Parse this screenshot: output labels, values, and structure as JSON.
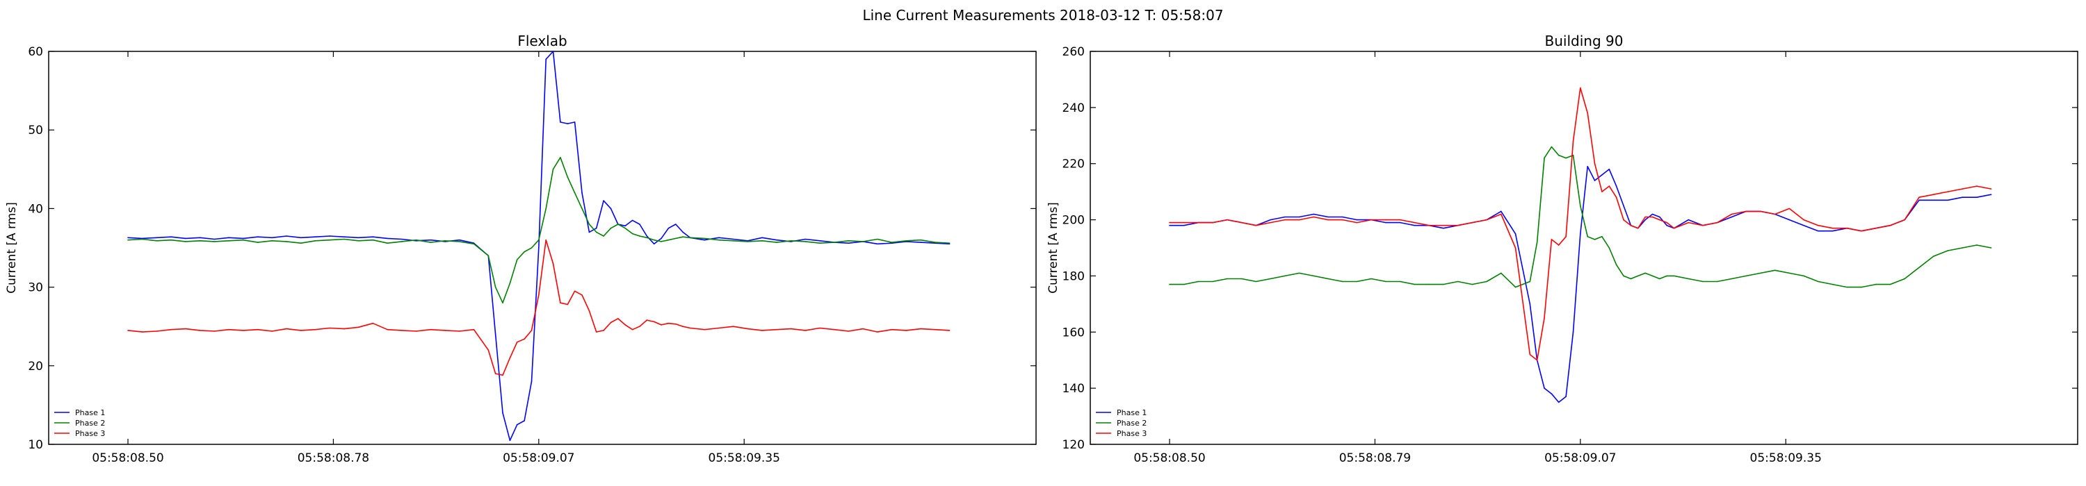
{
  "figure": {
    "suptitle": "Line Current Measurements 2018-03-12 T: 05:58:07"
  },
  "chart_data": [
    {
      "type": "line",
      "title": "Flexlab",
      "xlabel": "",
      "ylabel": "Current [A rms]",
      "ylim": [
        10,
        60
      ],
      "xlim": [
        -0.11,
        1.26
      ],
      "yticks": [
        10,
        20,
        30,
        40,
        50,
        60
      ],
      "xticks": [
        {
          "value": 0.0,
          "label": "05:58:08.50"
        },
        {
          "value": 0.285,
          "label": "05:58:08.78"
        },
        {
          "value": 0.57,
          "label": "05:58:09.07"
        },
        {
          "value": 0.855,
          "label": "05:58:09.35"
        }
      ],
      "legend_loc": "lower-left",
      "grid": false,
      "x_unit": "seconds after 05:58:08.50",
      "series": [
        {
          "name": "Phase 1",
          "color": "#0000ff",
          "x": [
            0,
            0.02,
            0.04,
            0.06,
            0.08,
            0.1,
            0.12,
            0.14,
            0.16,
            0.18,
            0.2,
            0.22,
            0.24,
            0.26,
            0.28,
            0.3,
            0.32,
            0.34,
            0.36,
            0.38,
            0.4,
            0.42,
            0.44,
            0.46,
            0.48,
            0.5,
            0.51,
            0.52,
            0.53,
            0.54,
            0.55,
            0.56,
            0.57,
            0.58,
            0.59,
            0.6,
            0.61,
            0.62,
            0.63,
            0.64,
            0.65,
            0.66,
            0.67,
            0.68,
            0.69,
            0.7,
            0.71,
            0.72,
            0.73,
            0.74,
            0.75,
            0.76,
            0.77,
            0.78,
            0.8,
            0.82,
            0.84,
            0.86,
            0.88,
            0.9,
            0.92,
            0.94,
            0.96,
            0.98,
            1.0,
            1.02,
            1.04,
            1.06,
            1.08,
            1.1,
            1.12,
            1.14
          ],
          "y": [
            36.3,
            36.2,
            36.3,
            36.4,
            36.2,
            36.3,
            36.1,
            36.3,
            36.2,
            36.4,
            36.3,
            36.5,
            36.3,
            36.4,
            36.5,
            36.4,
            36.3,
            36.4,
            36.2,
            36.1,
            35.9,
            36.0,
            35.8,
            36.0,
            35.6,
            34.0,
            24.0,
            14.0,
            10.5,
            12.5,
            13.0,
            18.0,
            35.0,
            59.0,
            60.0,
            51.0,
            50.8,
            51.0,
            42.0,
            37.0,
            37.5,
            41.0,
            40.0,
            38.0,
            37.8,
            38.5,
            38.0,
            36.5,
            35.5,
            36.2,
            37.5,
            38.0,
            37.0,
            36.3,
            36.0,
            36.3,
            36.1,
            35.9,
            36.3,
            36.0,
            35.8,
            36.1,
            35.9,
            35.7,
            35.6,
            35.8,
            35.5,
            35.6,
            35.8,
            35.7,
            35.6,
            35.5
          ]
        },
        {
          "name": "Phase 2",
          "color": "#008000",
          "x": [
            0,
            0.02,
            0.04,
            0.06,
            0.08,
            0.1,
            0.12,
            0.14,
            0.16,
            0.18,
            0.2,
            0.22,
            0.24,
            0.26,
            0.28,
            0.3,
            0.32,
            0.34,
            0.36,
            0.38,
            0.4,
            0.42,
            0.44,
            0.46,
            0.48,
            0.5,
            0.51,
            0.52,
            0.53,
            0.54,
            0.55,
            0.56,
            0.57,
            0.58,
            0.59,
            0.6,
            0.61,
            0.62,
            0.63,
            0.64,
            0.65,
            0.66,
            0.67,
            0.68,
            0.69,
            0.7,
            0.71,
            0.72,
            0.73,
            0.74,
            0.75,
            0.76,
            0.77,
            0.78,
            0.8,
            0.82,
            0.84,
            0.86,
            0.88,
            0.9,
            0.92,
            0.94,
            0.96,
            0.98,
            1.0,
            1.02,
            1.04,
            1.06,
            1.08,
            1.1,
            1.12,
            1.14
          ],
          "y": [
            36.0,
            36.1,
            35.9,
            36.0,
            35.8,
            35.9,
            35.8,
            35.9,
            36.0,
            35.7,
            35.9,
            35.8,
            35.6,
            35.9,
            36.0,
            36.1,
            35.9,
            36.0,
            35.6,
            35.8,
            36.0,
            35.7,
            35.9,
            35.8,
            35.5,
            34.0,
            30.0,
            28.0,
            30.5,
            33.5,
            34.5,
            35.0,
            36.0,
            40.0,
            45.0,
            46.5,
            44.0,
            42.0,
            40.0,
            38.0,
            37.0,
            36.5,
            37.5,
            38.0,
            37.5,
            36.8,
            36.5,
            36.3,
            36.0,
            35.8,
            36.0,
            36.2,
            36.4,
            36.3,
            36.2,
            36.0,
            35.9,
            35.8,
            35.9,
            35.7,
            35.9,
            35.8,
            35.6,
            35.7,
            35.9,
            35.8,
            36.1,
            35.7,
            35.9,
            36.0,
            35.7,
            35.6
          ]
        },
        {
          "name": "Phase 3",
          "color": "#ff0000",
          "x": [
            0,
            0.02,
            0.04,
            0.06,
            0.08,
            0.1,
            0.12,
            0.14,
            0.16,
            0.18,
            0.2,
            0.22,
            0.24,
            0.26,
            0.28,
            0.3,
            0.32,
            0.34,
            0.36,
            0.38,
            0.4,
            0.42,
            0.44,
            0.46,
            0.48,
            0.5,
            0.51,
            0.52,
            0.53,
            0.54,
            0.55,
            0.56,
            0.57,
            0.58,
            0.59,
            0.6,
            0.61,
            0.62,
            0.63,
            0.64,
            0.65,
            0.66,
            0.67,
            0.68,
            0.69,
            0.7,
            0.71,
            0.72,
            0.73,
            0.74,
            0.75,
            0.76,
            0.77,
            0.78,
            0.8,
            0.82,
            0.84,
            0.86,
            0.88,
            0.9,
            0.92,
            0.94,
            0.96,
            0.98,
            1.0,
            1.02,
            1.04,
            1.06,
            1.08,
            1.1,
            1.12,
            1.14
          ],
          "y": [
            24.5,
            24.3,
            24.4,
            24.6,
            24.7,
            24.5,
            24.4,
            24.6,
            24.5,
            24.6,
            24.4,
            24.7,
            24.5,
            24.6,
            24.8,
            24.7,
            24.9,
            25.4,
            24.6,
            24.5,
            24.4,
            24.6,
            24.5,
            24.4,
            24.6,
            22.0,
            19.0,
            18.8,
            21.0,
            23.0,
            23.4,
            24.5,
            29.0,
            36.0,
            33.0,
            28.0,
            27.8,
            29.5,
            29.0,
            27.0,
            24.3,
            24.5,
            25.5,
            26.0,
            25.2,
            24.6,
            25.0,
            25.8,
            25.6,
            25.2,
            25.4,
            25.3,
            25.0,
            24.8,
            24.6,
            24.8,
            25.0,
            24.7,
            24.5,
            24.6,
            24.7,
            24.5,
            24.8,
            24.6,
            24.4,
            24.7,
            24.3,
            24.6,
            24.5,
            24.7,
            24.6,
            24.5
          ]
        }
      ]
    },
    {
      "type": "line",
      "title": "Building 90",
      "xlabel": "",
      "ylabel": "Current [A rms]",
      "ylim": [
        120,
        260
      ],
      "xlim": [
        -0.11,
        1.26
      ],
      "yticks": [
        120,
        140,
        160,
        180,
        200,
        220,
        240,
        260
      ],
      "xticks": [
        {
          "value": 0.0,
          "label": "05:58:08.50"
        },
        {
          "value": 0.285,
          "label": "05:58:08.79"
        },
        {
          "value": 0.57,
          "label": "05:58:09.07"
        },
        {
          "value": 0.855,
          "label": "05:58:09.35"
        }
      ],
      "legend_loc": "lower-left",
      "grid": false,
      "x_unit": "seconds after 05:58:08.50",
      "series": [
        {
          "name": "Phase 1",
          "color": "#0000ff",
          "x": [
            0,
            0.02,
            0.04,
            0.06,
            0.08,
            0.1,
            0.12,
            0.14,
            0.16,
            0.18,
            0.2,
            0.22,
            0.24,
            0.26,
            0.28,
            0.3,
            0.32,
            0.34,
            0.36,
            0.38,
            0.4,
            0.42,
            0.44,
            0.46,
            0.48,
            0.5,
            0.51,
            0.52,
            0.53,
            0.54,
            0.55,
            0.56,
            0.57,
            0.58,
            0.59,
            0.6,
            0.61,
            0.62,
            0.63,
            0.64,
            0.65,
            0.66,
            0.67,
            0.68,
            0.69,
            0.7,
            0.72,
            0.74,
            0.76,
            0.78,
            0.8,
            0.82,
            0.84,
            0.86,
            0.88,
            0.9,
            0.92,
            0.94,
            0.96,
            0.98,
            1.0,
            1.02,
            1.04,
            1.06,
            1.08,
            1.1,
            1.12,
            1.14
          ],
          "y": [
            198,
            198,
            199,
            199,
            200,
            199,
            198,
            200,
            201,
            201,
            202,
            201,
            201,
            200,
            200,
            199,
            199,
            198,
            198,
            197,
            198,
            199,
            200,
            203,
            195,
            170,
            150,
            140,
            138,
            135,
            137,
            160,
            195,
            219,
            214,
            216,
            218,
            212,
            205,
            198,
            197,
            200,
            202,
            201,
            198,
            197,
            200,
            198,
            199,
            201,
            203,
            203,
            202,
            200,
            198,
            196,
            196,
            197,
            196,
            197,
            198,
            200,
            207,
            207,
            207,
            208,
            208,
            209
          ]
        },
        {
          "name": "Phase 2",
          "color": "#008000",
          "x": [
            0,
            0.02,
            0.04,
            0.06,
            0.08,
            0.1,
            0.12,
            0.14,
            0.16,
            0.18,
            0.2,
            0.22,
            0.24,
            0.26,
            0.28,
            0.3,
            0.32,
            0.34,
            0.36,
            0.38,
            0.4,
            0.42,
            0.44,
            0.46,
            0.48,
            0.5,
            0.51,
            0.52,
            0.53,
            0.54,
            0.55,
            0.56,
            0.57,
            0.58,
            0.59,
            0.6,
            0.61,
            0.62,
            0.63,
            0.64,
            0.65,
            0.66,
            0.67,
            0.68,
            0.69,
            0.7,
            0.72,
            0.74,
            0.76,
            0.78,
            0.8,
            0.82,
            0.84,
            0.86,
            0.88,
            0.9,
            0.92,
            0.94,
            0.96,
            0.98,
            1.0,
            1.02,
            1.04,
            1.06,
            1.08,
            1.1,
            1.12,
            1.14
          ],
          "y": [
            177,
            177,
            178,
            178,
            179,
            179,
            178,
            179,
            180,
            181,
            180,
            179,
            178,
            178,
            179,
            178,
            178,
            177,
            177,
            177,
            178,
            177,
            178,
            181,
            176,
            178,
            192,
            222,
            226,
            223,
            222,
            223,
            205,
            194,
            193,
            194,
            190,
            184,
            180,
            179,
            180,
            181,
            180,
            179,
            180,
            180,
            179,
            178,
            178,
            179,
            180,
            181,
            182,
            181,
            180,
            178,
            177,
            176,
            176,
            177,
            177,
            179,
            183,
            187,
            189,
            190,
            191,
            190
          ]
        },
        {
          "name": "Phase 3",
          "color": "#ff0000",
          "x": [
            0,
            0.02,
            0.04,
            0.06,
            0.08,
            0.1,
            0.12,
            0.14,
            0.16,
            0.18,
            0.2,
            0.22,
            0.24,
            0.26,
            0.28,
            0.3,
            0.32,
            0.34,
            0.36,
            0.38,
            0.4,
            0.42,
            0.44,
            0.46,
            0.48,
            0.5,
            0.51,
            0.52,
            0.53,
            0.54,
            0.55,
            0.56,
            0.57,
            0.58,
            0.59,
            0.6,
            0.61,
            0.62,
            0.63,
            0.64,
            0.65,
            0.66,
            0.67,
            0.68,
            0.69,
            0.7,
            0.72,
            0.74,
            0.76,
            0.78,
            0.8,
            0.82,
            0.84,
            0.86,
            0.88,
            0.9,
            0.92,
            0.94,
            0.96,
            0.98,
            1.0,
            1.02,
            1.04,
            1.06,
            1.08,
            1.1,
            1.12,
            1.14
          ],
          "y": [
            199,
            199,
            199,
            199,
            200,
            199,
            198,
            199,
            200,
            200,
            201,
            200,
            200,
            199,
            200,
            200,
            200,
            199,
            198,
            198,
            198,
            199,
            200,
            202,
            190,
            152,
            150,
            165,
            193,
            191,
            194,
            228,
            247,
            238,
            220,
            210,
            212,
            208,
            200,
            198,
            197,
            201,
            201,
            200,
            199,
            197,
            199,
            198,
            199,
            202,
            203,
            203,
            202,
            204,
            200,
            198,
            197,
            197,
            196,
            197,
            198,
            200,
            208,
            209,
            210,
            211,
            212,
            211
          ]
        }
      ]
    }
  ]
}
